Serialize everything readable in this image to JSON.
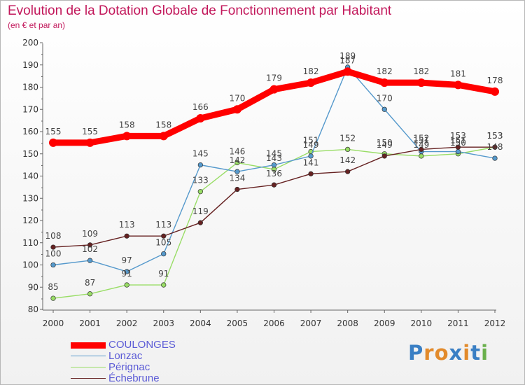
{
  "chart_data": {
    "type": "line",
    "title": "Evolution de la Dotation Globale de Fonctionnement par Habitant",
    "subtitle": "(en € et par an)",
    "xlabel": "",
    "ylabel": "",
    "categories": [
      "2000",
      "2001",
      "2002",
      "2003",
      "2004",
      "2005",
      "2006",
      "2007",
      "2008",
      "2009",
      "2010",
      "2011",
      "2012"
    ],
    "ylim": [
      80,
      200
    ],
    "yticks": [
      80,
      90,
      100,
      110,
      120,
      130,
      140,
      150,
      160,
      170,
      180,
      190,
      200
    ],
    "grid": false,
    "legend_position": "bottom-left",
    "series": [
      {
        "name": "COULONGES",
        "color": "#ff0000",
        "values": [
          155,
          155,
          158,
          158,
          166,
          170,
          179,
          182,
          187,
          182,
          182,
          181,
          178
        ]
      },
      {
        "name": "Lonzac",
        "color": "#5599cc",
        "values": [
          100,
          102,
          97,
          105,
          145,
          142,
          145,
          149,
          189,
          170,
          151,
          151,
          148
        ]
      },
      {
        "name": "Pérignac",
        "color": "#99dd66",
        "values": [
          85,
          87,
          91,
          91,
          133,
          146,
          143,
          151,
          152,
          150,
          149,
          150,
          153
        ]
      },
      {
        "name": "Échebrune",
        "color": "#662222",
        "values": [
          108,
          109,
          113,
          113,
          119,
          134,
          136,
          141,
          142,
          149,
          152,
          153,
          153
        ]
      }
    ]
  },
  "logo": {
    "text": "Proxiti",
    "colors": [
      "#3a7fc4",
      "#e28a2b",
      "#e28a2b",
      "#3a7fc4",
      "#e28a2b",
      "#3a7fc4",
      "#6ab04c"
    ]
  }
}
